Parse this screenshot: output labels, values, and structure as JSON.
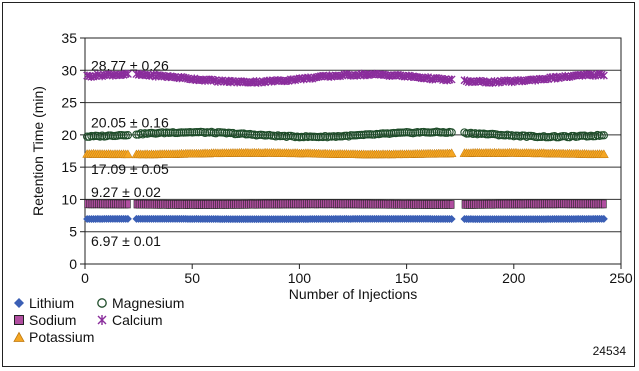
{
  "chart_data": {
    "type": "scatter",
    "xlabel": "Number of Injections",
    "ylabel": "Retention Time (min)",
    "xlim": [
      0,
      250
    ],
    "ylim": [
      0,
      35
    ],
    "xticks": [
      0,
      50,
      100,
      150,
      200,
      250
    ],
    "yticks": [
      0,
      5,
      10,
      15,
      20,
      25,
      30,
      35
    ],
    "grid": "horizontal",
    "x_range": [
      1,
      242
    ],
    "gaps": [
      [
        21,
        23
      ],
      [
        172,
        176
      ]
    ],
    "series": [
      {
        "name": "Lithium",
        "marker": "diamond",
        "color": "#3b5fb5",
        "mean": 6.97,
        "sd": 0.01
      },
      {
        "name": "Sodium",
        "marker": "square",
        "color": "#b04ea0",
        "mean": 9.27,
        "sd": 0.02
      },
      {
        "name": "Potassium",
        "marker": "triangle",
        "color": "#f5a623",
        "mean": 17.09,
        "sd": 0.05
      },
      {
        "name": "Magnesium",
        "marker": "circle",
        "color": "#1f4d2a",
        "mean": 20.05,
        "sd": 0.16
      },
      {
        "name": "Calcium",
        "marker": "x",
        "color": "#8a2d9c",
        "mean": 28.77,
        "sd": 0.26
      }
    ],
    "annotations": [
      "28.77 ± 0.26",
      "20.05 ± 0.16",
      "17.09 ± 0.05",
      "9.27 ± 0.02",
      "6.97 ± 0.01"
    ]
  },
  "legend": {
    "items": [
      {
        "label": "Lithium",
        "marker": "diamond"
      },
      {
        "label": "Magnesium",
        "marker": "circle"
      },
      {
        "label": "Sodium",
        "marker": "square"
      },
      {
        "label": "Calcium",
        "marker": "x"
      },
      {
        "label": "Potassium",
        "marker": "triangle"
      }
    ]
  },
  "figure_code": "24534"
}
